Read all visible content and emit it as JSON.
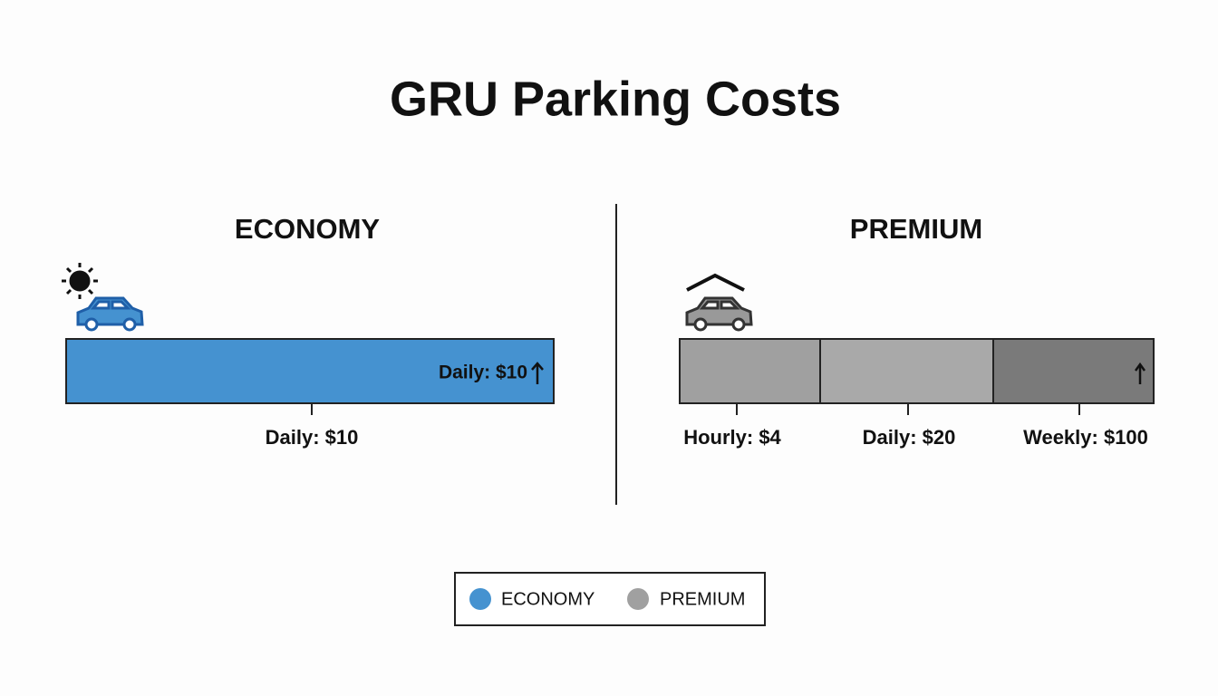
{
  "title": "GRU Parking Costs",
  "economy": {
    "heading": "ECONOMY",
    "bar_label": "Daily: $10",
    "ticks": [
      "Daily: $10"
    ]
  },
  "premium": {
    "heading": "PREMIUM",
    "ticks": [
      "Hourly: $4",
      "Daily: $20",
      "Weekly: $100"
    ]
  },
  "legend": [
    "ECONOMY",
    "PREMIUM"
  ]
}
